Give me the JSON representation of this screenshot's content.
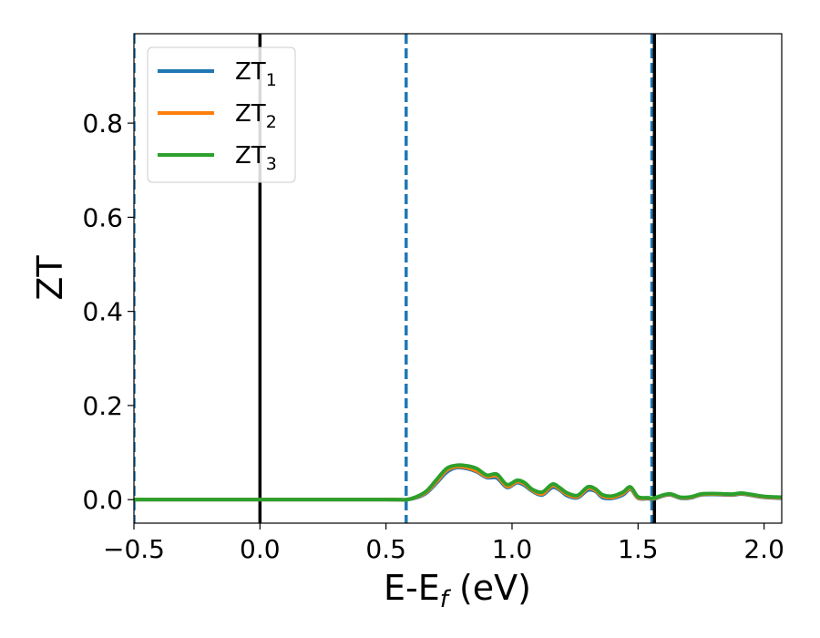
{
  "chart_data": {
    "type": "line",
    "title": "",
    "xlabel": {
      "base": "E-E",
      "sub": "f",
      "suffix": " (eV)"
    },
    "ylabel": "ZT",
    "xlim": [
      -0.5,
      2.07
    ],
    "ylim": [
      -0.05,
      0.99
    ],
    "x_ticks": [
      -0.5,
      0.0,
      0.5,
      1.0,
      1.5,
      2.0
    ],
    "x_tick_labels": [
      "−0.5",
      "0.0",
      "0.5",
      "1.0",
      "1.5",
      "2.0"
    ],
    "y_ticks": [
      0.0,
      0.2,
      0.4,
      0.6,
      0.8
    ],
    "y_tick_labels": [
      "0.0",
      "0.2",
      "0.4",
      "0.6",
      "0.8"
    ],
    "grid": false,
    "legend": {
      "placement": "top-left"
    },
    "vlines": [
      {
        "x": -0.5,
        "style": "dashed",
        "color": "#1f77b4"
      },
      {
        "x": 0.0,
        "style": "solid",
        "color": "#000000"
      },
      {
        "x": 0.58,
        "style": "dashed",
        "color": "#1f77b4"
      },
      {
        "x": 1.555,
        "style": "dashed",
        "color": "#1f77b4"
      },
      {
        "x": 1.565,
        "style": "solid",
        "color": "#000000"
      }
    ],
    "series": [
      {
        "name": "ZT",
        "sub": "1",
        "color": "#1f77b4",
        "x": [
          -0.5,
          0.0,
          0.5,
          0.58,
          0.62,
          0.66,
          0.7,
          0.74,
          0.78,
          0.82,
          0.86,
          0.9,
          0.94,
          0.98,
          1.02,
          1.05,
          1.08,
          1.12,
          1.16,
          1.19,
          1.22,
          1.26,
          1.3,
          1.33,
          1.36,
          1.4,
          1.44,
          1.47,
          1.5,
          1.54,
          1.56,
          1.6,
          1.63,
          1.67,
          1.71,
          1.75,
          1.8,
          1.85,
          1.88,
          1.91,
          1.95,
          2.0,
          2.07
        ],
        "values": [
          0,
          0,
          0,
          0,
          0.004,
          0.014,
          0.035,
          0.058,
          0.068,
          0.066,
          0.059,
          0.047,
          0.046,
          0.026,
          0.036,
          0.03,
          0.018,
          0.01,
          0.026,
          0.02,
          0.008,
          0.004,
          0.02,
          0.018,
          0.004,
          0.003,
          0.01,
          0.022,
          0.003,
          0.002,
          0.001,
          0.008,
          0.01,
          0.003,
          0.004,
          0.01,
          0.011,
          0.01,
          0.01,
          0.012,
          0.009,
          0.005,
          0.003
        ]
      },
      {
        "name": "ZT",
        "sub": "2",
        "color": "#ff7f0e",
        "x": [
          -0.5,
          0.0,
          0.5,
          0.58,
          0.62,
          0.66,
          0.7,
          0.74,
          0.78,
          0.82,
          0.86,
          0.9,
          0.94,
          0.98,
          1.02,
          1.05,
          1.08,
          1.12,
          1.16,
          1.19,
          1.22,
          1.26,
          1.3,
          1.33,
          1.36,
          1.4,
          1.44,
          1.47,
          1.5,
          1.54,
          1.56,
          1.6,
          1.63,
          1.67,
          1.71,
          1.75,
          1.8,
          1.85,
          1.88,
          1.91,
          1.95,
          2.0,
          2.07
        ],
        "values": [
          0,
          0,
          0,
          0,
          0.005,
          0.016,
          0.038,
          0.062,
          0.07,
          0.068,
          0.061,
          0.049,
          0.05,
          0.028,
          0.038,
          0.033,
          0.02,
          0.012,
          0.03,
          0.022,
          0.011,
          0.006,
          0.024,
          0.02,
          0.007,
          0.005,
          0.013,
          0.024,
          0.004,
          0.003,
          0.002,
          0.009,
          0.011,
          0.004,
          0.005,
          0.011,
          0.012,
          0.011,
          0.011,
          0.013,
          0.01,
          0.006,
          0.004
        ]
      },
      {
        "name": "ZT",
        "sub": "3",
        "color": "#2ca02c",
        "x": [
          -0.5,
          0.0,
          0.5,
          0.58,
          0.62,
          0.66,
          0.7,
          0.74,
          0.78,
          0.82,
          0.86,
          0.9,
          0.94,
          0.98,
          1.02,
          1.05,
          1.08,
          1.12,
          1.16,
          1.19,
          1.22,
          1.26,
          1.3,
          1.33,
          1.36,
          1.4,
          1.44,
          1.47,
          1.5,
          1.54,
          1.56,
          1.6,
          1.63,
          1.67,
          1.71,
          1.75,
          1.8,
          1.85,
          1.88,
          1.91,
          1.95,
          2.0,
          2.07
        ],
        "values": [
          0,
          0,
          0,
          0,
          0.006,
          0.018,
          0.042,
          0.066,
          0.073,
          0.072,
          0.066,
          0.052,
          0.054,
          0.032,
          0.041,
          0.036,
          0.022,
          0.016,
          0.033,
          0.025,
          0.014,
          0.009,
          0.027,
          0.023,
          0.01,
          0.008,
          0.016,
          0.027,
          0.006,
          0.004,
          0.003,
          0.01,
          0.012,
          0.005,
          0.006,
          0.012,
          0.013,
          0.012,
          0.012,
          0.014,
          0.011,
          0.007,
          0.005
        ]
      }
    ]
  }
}
